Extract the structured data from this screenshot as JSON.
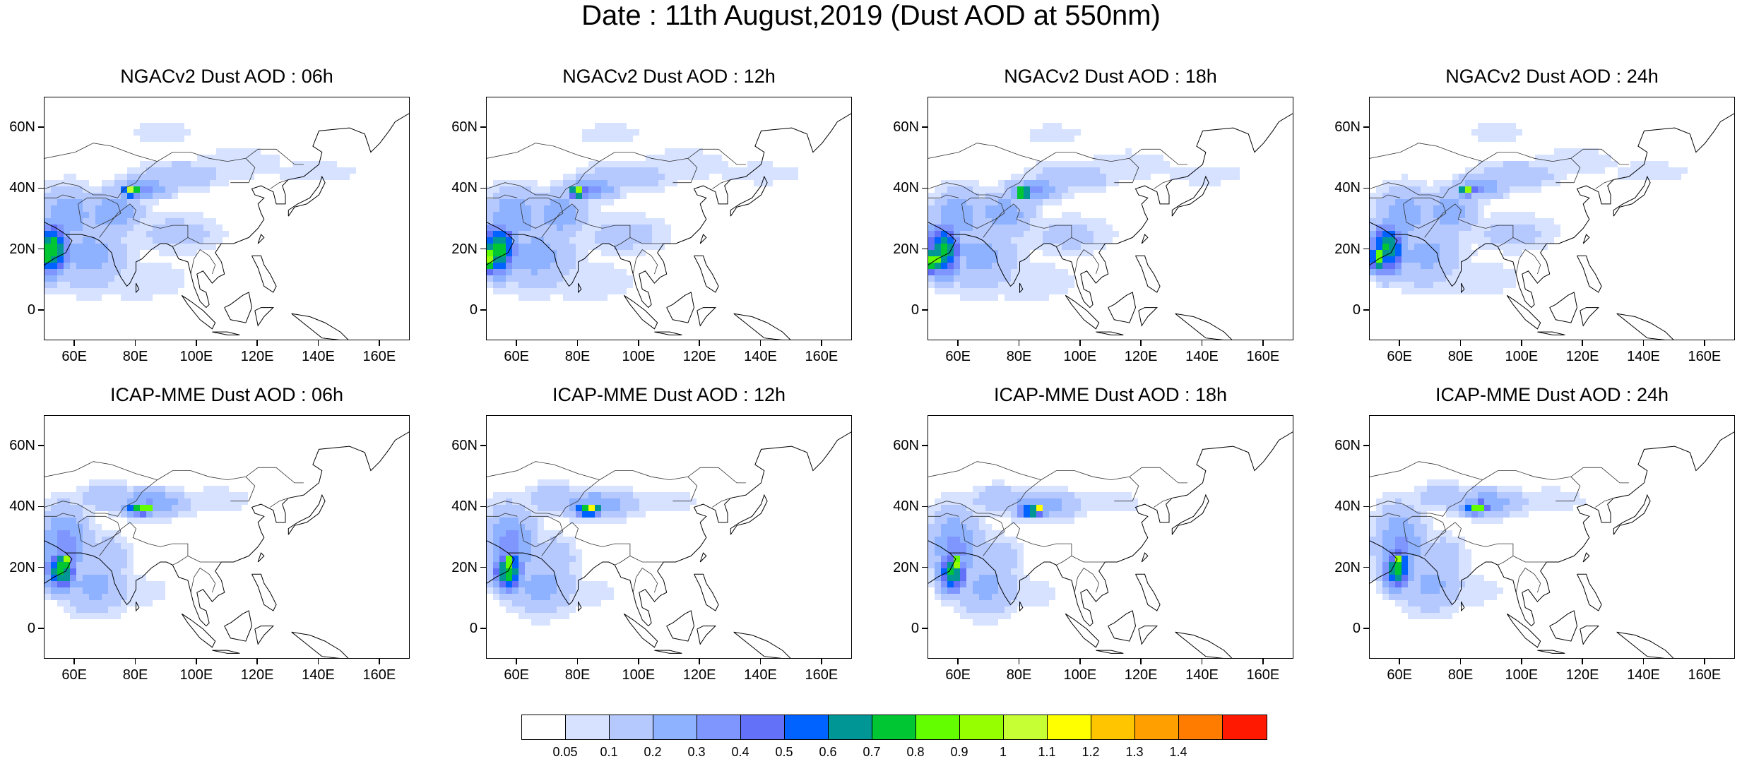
{
  "title": "Date : 11th August,2019 (Dust AOD at 550nm)",
  "panels": [
    {
      "title": "NGACv2 Dust AOD : 06h",
      "model": "ngac",
      "hour": "06h"
    },
    {
      "title": "NGACv2 Dust AOD : 12h",
      "model": "ngac",
      "hour": "12h"
    },
    {
      "title": "NGACv2 Dust AOD : 18h",
      "model": "ngac",
      "hour": "18h"
    },
    {
      "title": "NGACv2 Dust AOD : 24h",
      "model": "ngac",
      "hour": "24h"
    },
    {
      "title": "ICAP-MME Dust AOD : 06h",
      "model": "icap",
      "hour": "06h"
    },
    {
      "title": "ICAP-MME Dust AOD : 12h",
      "model": "icap",
      "hour": "12h"
    },
    {
      "title": "ICAP-MME Dust AOD : 18h",
      "model": "icap",
      "hour": "18h"
    },
    {
      "title": "ICAP-MME Dust AOD : 24h",
      "model": "icap",
      "hour": "24h"
    }
  ],
  "map": {
    "lon_range": [
      50,
      170
    ],
    "lat_range": [
      -10,
      70
    ],
    "lon_ticks": [
      60,
      80,
      100,
      120,
      140,
      160
    ],
    "lon_labels": [
      "60E",
      "80E",
      "100E",
      "120E",
      "140E",
      "160E"
    ],
    "lat_ticks": [
      0,
      20,
      40,
      60
    ],
    "lat_labels": [
      "0",
      "20N",
      "40N",
      "60N"
    ]
  },
  "colorbar": {
    "colors": [
      "#ffffff",
      "#d6e2ff",
      "#b5c9ff",
      "#8eb2ff",
      "#7f96ff",
      "#6370f8",
      "#0062ff",
      "#009696",
      "#00c633",
      "#63ff00",
      "#96ff00",
      "#c6ff33",
      "#ffff00",
      "#ffc600",
      "#ffa000",
      "#ff7c00",
      "#ff1900"
    ],
    "labels": [
      "0.05",
      "0.1",
      "0.2",
      "0.3",
      "0.4",
      "0.5",
      "0.6",
      "0.7",
      "0.8",
      "0.9",
      "1",
      "1.1",
      "1.2",
      "1.3",
      "1.4"
    ]
  },
  "dust_fields": {
    "ngac": [
      {
        "lon": 59,
        "lat": 31,
        "rx": 10,
        "ry": 10,
        "v": 0.3
      },
      {
        "lon": 54,
        "lat": 20,
        "rx": 6,
        "ry": 9,
        "v": 0.8
      },
      {
        "lon": 51,
        "lat": 17,
        "rx": 3,
        "ry": 5,
        "v": 1.0
      },
      {
        "lon": 66,
        "lat": 18,
        "rx": 14,
        "ry": 12,
        "v": 0.25
      },
      {
        "lon": 74,
        "lat": 32,
        "rx": 10,
        "ry": 8,
        "v": 0.3
      },
      {
        "lon": 80,
        "lat": 39,
        "rx": 3,
        "ry": 2,
        "v": 1.1
      },
      {
        "lon": 84,
        "lat": 40,
        "rx": 10,
        "ry": 4,
        "v": 0.35
      },
      {
        "lon": 96,
        "lat": 44,
        "rx": 16,
        "ry": 5,
        "v": 0.2
      },
      {
        "lon": 115,
        "lat": 48,
        "rx": 18,
        "ry": 6,
        "v": 0.1
      },
      {
        "lon": 140,
        "lat": 45,
        "rx": 20,
        "ry": 5,
        "v": 0.08
      },
      {
        "lon": 95,
        "lat": 25,
        "rx": 16,
        "ry": 7,
        "v": 0.15
      },
      {
        "lon": 90,
        "lat": 58,
        "rx": 14,
        "ry": 5,
        "v": 0.08
      },
      {
        "lon": 82,
        "lat": 10,
        "rx": 20,
        "ry": 8,
        "v": 0.1
      }
    ],
    "icap": [
      {
        "lon": 58,
        "lat": 27,
        "rx": 9,
        "ry": 14,
        "v": 0.35
      },
      {
        "lon": 57,
        "lat": 19,
        "rx": 5,
        "ry": 7,
        "v": 0.8
      },
      {
        "lon": 58,
        "lat": 22,
        "rx": 2,
        "ry": 3,
        "v": 1.15
      },
      {
        "lon": 68,
        "lat": 14,
        "rx": 12,
        "ry": 10,
        "v": 0.25
      },
      {
        "lon": 83,
        "lat": 39,
        "rx": 5,
        "ry": 2,
        "v": 0.9
      },
      {
        "lon": 85,
        "lat": 40,
        "rx": 2,
        "ry": 1.5,
        "v": 1.3
      },
      {
        "lon": 86,
        "lat": 41,
        "rx": 14,
        "ry": 5,
        "v": 0.3
      },
      {
        "lon": 72,
        "lat": 43,
        "rx": 10,
        "ry": 5,
        "v": 0.2
      },
      {
        "lon": 108,
        "lat": 42,
        "rx": 14,
        "ry": 5,
        "v": 0.1
      },
      {
        "lon": 72,
        "lat": 23,
        "rx": 8,
        "ry": 8,
        "v": 0.2
      },
      {
        "lon": 82,
        "lat": 12,
        "rx": 12,
        "ry": 6,
        "v": 0.1
      }
    ]
  }
}
